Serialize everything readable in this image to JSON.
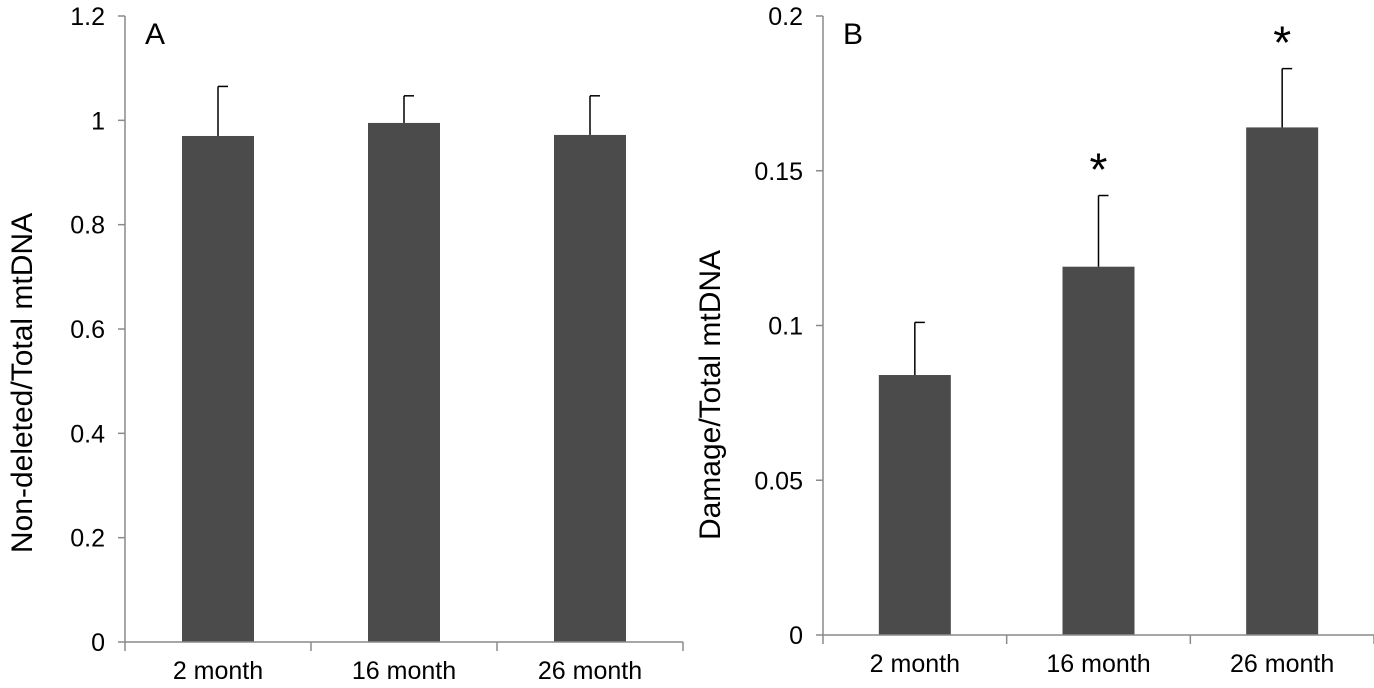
{
  "colors": {
    "bar": "#4b4b4b",
    "axis": "#8a8a8a",
    "error": "#000000",
    "text": "#000000"
  },
  "chart_data": [
    {
      "type": "bar",
      "panel_label": "A",
      "categories": [
        "2 month",
        "16 month",
        "26 month"
      ],
      "values": [
        0.97,
        0.995,
        0.972
      ],
      "errors": [
        0.095,
        0.052,
        0.075
      ],
      "annotations": [
        "",
        "",
        ""
      ],
      "title": "",
      "xlabel": "",
      "ylabel": "Non-deleted/Total mtDNA",
      "ylim": [
        0,
        1.2
      ],
      "yticks": [
        0,
        0.2,
        0.4,
        0.6,
        0.8,
        1,
        1.2
      ],
      "ytick_labels": [
        "0",
        "0.2",
        "0.4",
        "0.6",
        "0.8",
        "1",
        "1.2"
      ],
      "grid": false,
      "legend": "none"
    },
    {
      "type": "bar",
      "panel_label": "B",
      "categories": [
        "2 month",
        "16 month",
        "26 month"
      ],
      "values": [
        0.084,
        0.119,
        0.164
      ],
      "errors": [
        0.017,
        0.023,
        0.019
      ],
      "annotations": [
        "",
        "*",
        "*"
      ],
      "title": "",
      "xlabel": "",
      "ylabel": "Damage/Total mtDNA",
      "ylim": [
        0,
        0.2
      ],
      "yticks": [
        0,
        0.05,
        0.1,
        0.15,
        0.2
      ],
      "ytick_labels": [
        "0",
        "0.05",
        "0.1",
        "0.15",
        "0.2"
      ],
      "grid": false,
      "legend": "none"
    }
  ]
}
